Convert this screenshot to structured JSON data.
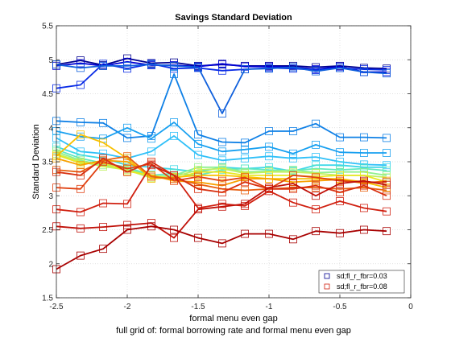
{
  "chart_data": {
    "type": "line",
    "title": "Savings Standard Deviation",
    "xlabel": "formal menu even gap",
    "ylabel": "Standard Deviation",
    "footer": "full grid of: formal borrowing rate and formal menu even gap",
    "xlim": [
      -2.5,
      0
    ],
    "ylim": [
      1.5,
      5.5
    ],
    "xticks": [
      -2.5,
      -2,
      -1.5,
      -1,
      -0.5,
      0
    ],
    "xtick_labels": [
      "-2.5",
      "-2",
      "-1.5",
      "-1",
      "-0.5",
      "0"
    ],
    "yticks": [
      1.5,
      2,
      2.5,
      3,
      3.5,
      4,
      4.5,
      5,
      5.5
    ],
    "ytick_labels": [
      "1.5",
      "2",
      "2.5",
      "3",
      "3.5",
      "4",
      "4.5",
      "5",
      "5.5"
    ],
    "grid": true,
    "legend_position": "bottom-right",
    "x": [
      -2.5,
      -2.33,
      -2.17,
      -2,
      -1.83,
      -1.67,
      -1.5,
      -1.33,
      -1.17,
      -1,
      -0.83,
      -0.67,
      -0.5,
      -0.33,
      -0.17
    ],
    "series": [
      {
        "name": "sd;fl_r_fbr=0.03",
        "color": "#00008f",
        "values": [
          4.93,
          4.99,
          4.92,
          5.02,
          4.95,
          4.96,
          4.91,
          4.93,
          4.91,
          4.91,
          4.91,
          4.89,
          4.91,
          4.88,
          4.87
        ]
      },
      {
        "color": "#0000d4",
        "values": [
          4.91,
          4.95,
          4.91,
          4.97,
          4.92,
          4.92,
          4.9,
          4.94,
          4.9,
          4.9,
          4.89,
          4.86,
          4.9,
          4.82,
          4.82
        ]
      },
      {
        "color": "#0a2ce6",
        "values": [
          4.58,
          4.63,
          4.94,
          4.87,
          4.94,
          4.87,
          4.88,
          4.84,
          4.86,
          4.88,
          4.87,
          4.85,
          4.88,
          4.86,
          4.85
        ]
      },
      {
        "color": "#1060dc",
        "values": [
          4.93,
          4.88,
          4.91,
          4.91,
          4.93,
          4.91,
          4.89,
          4.21,
          4.86,
          4.87,
          4.89,
          4.83,
          4.88,
          4.82,
          4.8
        ]
      },
      {
        "color": "#0f80e6",
        "values": [
          4.1,
          4.08,
          4.07,
          3.85,
          3.88,
          4.79,
          3.9,
          3.79,
          3.78,
          3.95,
          3.95,
          4.06,
          3.86,
          3.86,
          3.85
        ]
      },
      {
        "color": "#18a0f0",
        "values": [
          3.95,
          3.87,
          3.84,
          4.0,
          3.84,
          4.08,
          3.76,
          3.65,
          3.68,
          3.72,
          3.62,
          3.75,
          3.64,
          3.63,
          3.63
        ]
      },
      {
        "color": "#30c0f8",
        "values": [
          3.85,
          3.65,
          3.62,
          3.55,
          3.65,
          3.88,
          3.6,
          3.52,
          3.55,
          3.58,
          3.55,
          3.57,
          3.5,
          3.46,
          3.45
        ]
      },
      {
        "color": "#40d8e8",
        "values": [
          3.72,
          3.6,
          3.55,
          3.45,
          3.42,
          3.39,
          3.35,
          3.42,
          3.4,
          3.42,
          3.36,
          3.45,
          3.45,
          3.42,
          3.42
        ]
      },
      {
        "color": "#60e8c0",
        "values": [
          3.68,
          3.55,
          3.48,
          3.42,
          3.3,
          3.33,
          3.3,
          3.38,
          3.4,
          3.38,
          3.37,
          3.4,
          3.38,
          3.4,
          3.37
        ]
      },
      {
        "color": "#90f090",
        "values": [
          3.65,
          3.52,
          3.45,
          3.4,
          3.28,
          3.3,
          3.42,
          3.42,
          3.35,
          3.36,
          3.38,
          3.34,
          3.35,
          3.35,
          3.3
        ]
      },
      {
        "color": "#c0f060",
        "values": [
          3.62,
          3.5,
          3.43,
          3.38,
          3.26,
          3.28,
          3.38,
          3.4,
          3.33,
          3.35,
          3.35,
          3.33,
          3.3,
          3.3,
          3.27
        ]
      },
      {
        "color": "#e8e820",
        "values": [
          3.6,
          3.48,
          3.48,
          3.36,
          3.3,
          3.25,
          3.35,
          3.35,
          3.3,
          3.3,
          3.3,
          3.28,
          3.3,
          3.3,
          3.2
        ]
      },
      {
        "color": "#f8c000",
        "values": [
          3.58,
          3.9,
          3.78,
          3.55,
          3.25,
          3.27,
          3.3,
          3.3,
          3.28,
          3.25,
          3.25,
          3.25,
          3.25,
          3.2,
          3.12
        ]
      },
      {
        "color": "#f8a000",
        "values": [
          3.55,
          3.45,
          3.52,
          3.5,
          3.3,
          3.22,
          3.2,
          3.15,
          3.25,
          3.25,
          3.2,
          3.22,
          3.24,
          3.18,
          3.22
        ]
      },
      {
        "color": "#e86010",
        "values": [
          3.38,
          3.35,
          3.52,
          3.58,
          3.28,
          3.25,
          3.17,
          3.1,
          3.08,
          3.1,
          3.12,
          3.12,
          3.1,
          3.12,
          3.08
        ]
      },
      {
        "color": "#e04010",
        "values": [
          3.12,
          3.1,
          3.5,
          3.4,
          3.47,
          3.22,
          3.28,
          3.22,
          3.27,
          3.1,
          3.3,
          3.27,
          3.22,
          3.2,
          3.2
        ]
      },
      {
        "color": "#d83010",
        "values": [
          3.35,
          3.3,
          3.55,
          3.35,
          3.5,
          3.3,
          3.1,
          3.05,
          3.2,
          3.1,
          3.1,
          3.15,
          3.05,
          3.15,
          3.0
        ]
      },
      {
        "name": "sd;fl_r_fbr=0.08",
        "color": "#d02010",
        "values": [
          2.8,
          2.76,
          2.89,
          2.88,
          3.45,
          3.3,
          2.82,
          2.88,
          2.85,
          3.07,
          2.9,
          2.8,
          2.92,
          2.82,
          2.77
        ]
      },
      {
        "color": "#c01008",
        "values": [
          2.55,
          2.52,
          2.54,
          2.57,
          2.6,
          2.38,
          2.8,
          2.84,
          2.88,
          3.12,
          3.18,
          3.0,
          3.18,
          3.22,
          3.16
        ]
      },
      {
        "color": "#a80000",
        "values": [
          1.92,
          2.12,
          2.22,
          2.5,
          2.55,
          2.5,
          2.38,
          2.3,
          2.44,
          2.44,
          2.36,
          2.48,
          2.45,
          2.5,
          2.48
        ]
      }
    ]
  }
}
